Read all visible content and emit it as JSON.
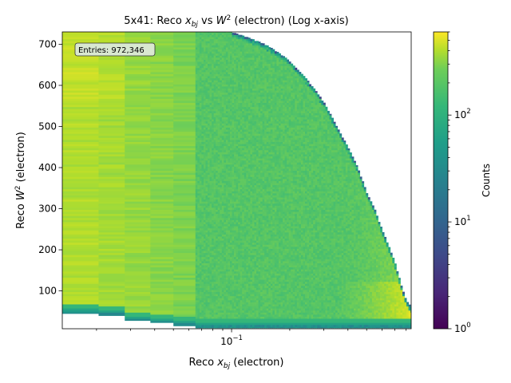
{
  "chart_data": {
    "type": "heatmap",
    "title": "5x41: Reco x_bj vs W² (electron) (Log x-axis)",
    "title_parts": {
      "pre": "5x41: Reco ",
      "var": "x",
      "sub": "bj",
      "mid": " vs ",
      "w": "W",
      "sup": "2",
      "post": " (electron) (Log x-axis)"
    },
    "xlabel_parts": {
      "pre": "Reco ",
      "var": "x",
      "sub": "bj",
      "post": " (electron)"
    },
    "ylabel_parts": {
      "pre": "Reco ",
      "var": "W",
      "sup": "2",
      "post": " (electron)"
    },
    "x_scale": "log",
    "xlim": [
      0.0133,
      0.85
    ],
    "ylim": [
      8,
      730
    ],
    "x_ticks": [
      {
        "value": 0.1,
        "label_base": "10",
        "label_exp": "−1"
      }
    ],
    "y_ticks": [
      100,
      200,
      300,
      400,
      500,
      600,
      700
    ],
    "colorbar": {
      "label": "Counts",
      "scale": "log",
      "range": [
        1,
        600
      ],
      "ticks": [
        {
          "value": 1,
          "label_base": "10",
          "label_exp": "0"
        },
        {
          "value": 10,
          "label_base": "10",
          "label_exp": "1"
        },
        {
          "value": 100,
          "label_base": "10",
          "label_exp": "2"
        }
      ],
      "colormap": "viridis"
    },
    "annotation": "Entries: 972,346",
    "entries": 972346,
    "kinematic_boundary": {
      "description": "upper edge of populated region",
      "x": [
        0.1,
        0.15,
        0.2,
        0.25,
        0.3,
        0.35,
        0.4,
        0.45,
        0.5,
        0.55,
        0.6,
        0.65,
        0.7,
        0.75,
        0.8,
        0.85
      ],
      "w2": [
        730,
        700,
        660,
        610,
        560,
        500,
        450,
        400,
        340,
        300,
        250,
        210,
        170,
        120,
        80,
        60
      ]
    },
    "low_x_bin_edges": [
      0.0133,
      0.0205,
      0.028,
      0.038,
      0.05,
      0.065
    ],
    "low_x_w2_floor": [
      45,
      40,
      27,
      22,
      15,
      10
    ]
  }
}
